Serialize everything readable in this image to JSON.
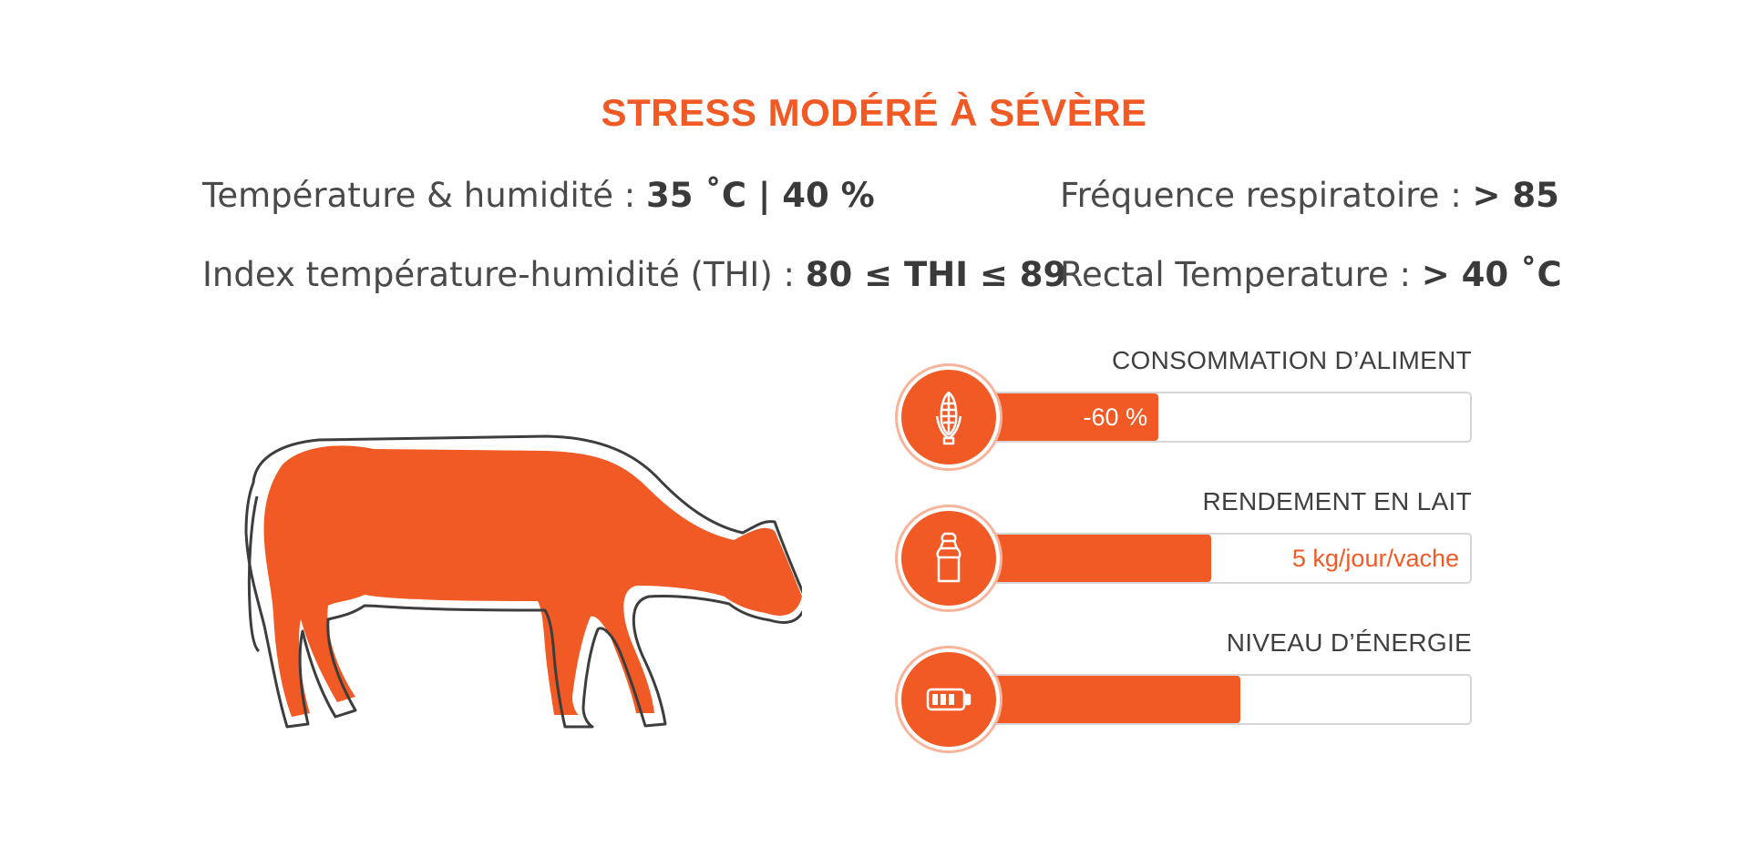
{
  "title": "STRESS MODÉRÉ À SÉVÈRE",
  "stats": {
    "temp_label": "Température & humidité : ",
    "temp_value": "35 ˚C | 40 %",
    "thi_label": "Index température-humidité (THI) : ",
    "thi_value": "80 ≤ THI ≤ 89",
    "resp_label": "Fréquence respiratoire : ",
    "resp_value": "> 85",
    "rectal_label": "Rectal Temperature : ",
    "rectal_value": "> 40 ˚C"
  },
  "metrics": {
    "feed": {
      "title": "CONSOMMATION D’ALIMENT",
      "label": "-60 %",
      "fill_fraction": 0.35,
      "icon": "corn-icon"
    },
    "milk": {
      "title": "RENDEMENT EN LAIT",
      "label": "5 kg/jour/vache",
      "fill_fraction": 0.46,
      "icon": "milk-can-icon"
    },
    "energy": {
      "title": "NIVEAU D’ÉNERGIE",
      "label": "",
      "fill_fraction": 0.52,
      "icon": "battery-icon"
    }
  },
  "colors": {
    "accent": "#f15a24",
    "text": "#3a3a3a",
    "outline": "#3d3d3d"
  },
  "illustration": "cow-icon"
}
